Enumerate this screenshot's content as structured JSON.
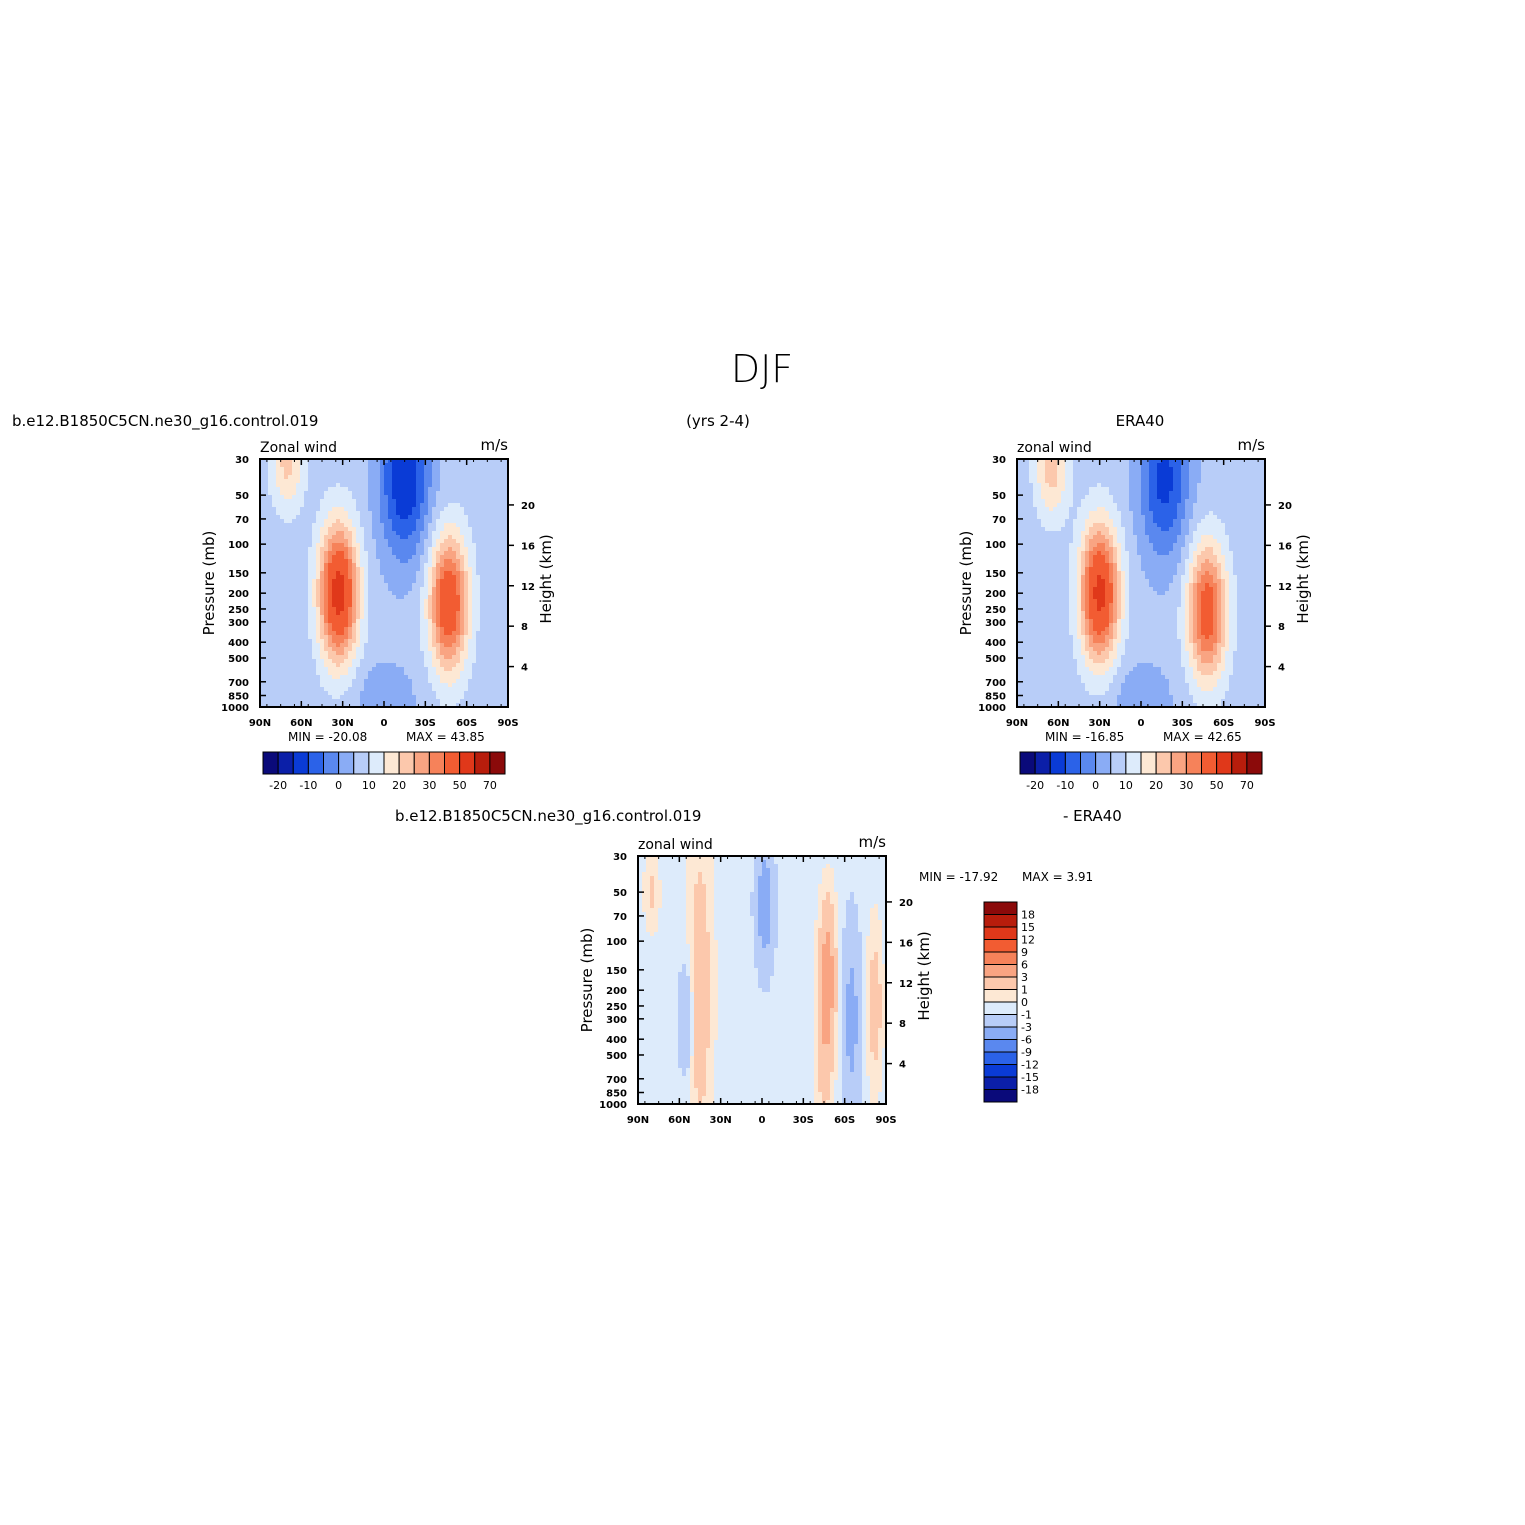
{
  "figure": {
    "season": "DJF",
    "years": "(yrs 2-4)",
    "case_left": "b.e12.B1850C5CN.ne30_g16.control.019",
    "case_right": "ERA40",
    "diff_left": "b.e12.B1850C5CN.ne30_g16.control.019",
    "diff_right": "- ERA40"
  },
  "chart_data": [
    {
      "type": "heatmap",
      "id": "model",
      "variable": "Zonal wind",
      "units": "m/s",
      "ylabel": "Pressure (mb)",
      "ylabel_right": "Height (km)",
      "x_ticks": [
        "90N",
        "60N",
        "30N",
        "0",
        "30S",
        "60S",
        "90S"
      ],
      "y_ticks": [
        30,
        50,
        70,
        100,
        150,
        200,
        250,
        300,
        400,
        500,
        700,
        850,
        1000
      ],
      "height_ticks": [
        4,
        8,
        12,
        16,
        20
      ],
      "min_label": "MIN = -20.08",
      "max_label": "MAX = 43.85",
      "min": -20.08,
      "max": 43.85,
      "features": [
        {
          "kind": "jet",
          "lat": 33,
          "pressure_mb": 200,
          "max": 43.85
        },
        {
          "kind": "jet",
          "lat": -47,
          "pressure_mb": 230,
          "max": 38
        },
        {
          "kind": "easterly",
          "lat": -15,
          "pressure_mb": 40,
          "min": -20.08
        },
        {
          "kind": "westerly",
          "lat": 70,
          "pressure_mb": 30,
          "max": 15
        }
      ]
    },
    {
      "type": "heatmap",
      "id": "obs",
      "variable": "zonal wind",
      "units": "m/s",
      "ylabel": "Pressure (mb)",
      "ylabel_right": "Height (km)",
      "x_ticks": [
        "90N",
        "60N",
        "30N",
        "0",
        "30S",
        "60S",
        "90S"
      ],
      "y_ticks": [
        30,
        50,
        70,
        100,
        150,
        200,
        250,
        300,
        400,
        500,
        700,
        850,
        1000
      ],
      "height_ticks": [
        4,
        8,
        12,
        16,
        20
      ],
      "min_label": "MIN = -16.85",
      "max_label": "MAX = 42.65",
      "min": -16.85,
      "max": 42.65,
      "features": [
        {
          "kind": "jet",
          "lat": 30,
          "pressure_mb": 200,
          "max": 42.65
        },
        {
          "kind": "jet",
          "lat": -48,
          "pressure_mb": 260,
          "max": 35
        },
        {
          "kind": "easterly",
          "lat": -17,
          "pressure_mb": 40,
          "min": -16.85
        },
        {
          "kind": "westerly",
          "lat": 65,
          "pressure_mb": 35,
          "max": 15
        }
      ]
    },
    {
      "type": "heatmap",
      "id": "diff",
      "variable": "zonal wind",
      "units": "m/s",
      "ylabel": "Pressure (mb)",
      "ylabel_right": "Height (km)",
      "x_ticks": [
        "90N",
        "60N",
        "30N",
        "0",
        "30S",
        "60S",
        "90S"
      ],
      "y_ticks": [
        30,
        50,
        70,
        100,
        150,
        200,
        250,
        300,
        400,
        500,
        700,
        850,
        1000
      ],
      "height_ticks": [
        4,
        8,
        12,
        16,
        20
      ],
      "min_label": "MIN = -17.92",
      "max_label": "MAX =   3.91",
      "min": -17.92,
      "max": 3.91
    }
  ],
  "colorbars": {
    "main": {
      "labels": [
        "-20",
        "-10",
        "0",
        "10",
        "20",
        "30",
        "50",
        "70"
      ],
      "colors": [
        "#0a0a7a",
        "#0b1fa8",
        "#0a3bd6",
        "#2b62e8",
        "#5a88ef",
        "#8aacf5",
        "#b8cdf8",
        "#ddebfb",
        "#fde8d4",
        "#fcc8ac",
        "#f9a482",
        "#f6825a",
        "#f25c32",
        "#e0381a",
        "#b81d0c",
        "#8b0a0a"
      ]
    },
    "diff": {
      "labels": [
        "18",
        "15",
        "12",
        "9",
        "6",
        "3",
        "1",
        "0",
        "-1",
        "-3",
        "-6",
        "-9",
        "-12",
        "-15",
        "-18"
      ],
      "colors": [
        "#8b0a0a",
        "#b81d0c",
        "#e0381a",
        "#f25c32",
        "#f6825a",
        "#f9a482",
        "#fcc8ac",
        "#fde8d4",
        "#ddebfb",
        "#b8cdf8",
        "#8aacf5",
        "#5a88ef",
        "#2b62e8",
        "#0a3bd6",
        "#0b1fa8",
        "#0a0a7a"
      ]
    }
  }
}
